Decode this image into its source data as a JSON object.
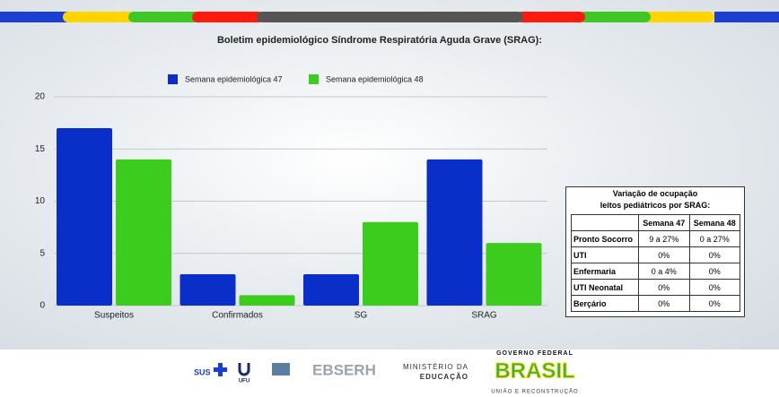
{
  "chart_data": {
    "type": "bar",
    "title": "Boletim epidemiológico Síndrome Respiratória Aguda Grave (SRAG):",
    "categories": [
      "Suspeitos",
      "Confirmados",
      "SG",
      "SRAG"
    ],
    "series": [
      {
        "name": "Semana epidemiológica 47",
        "color": "#0a2ec8",
        "values": [
          17,
          3,
          3,
          14
        ]
      },
      {
        "name": "Semana epidemiológica 48",
        "color": "#3ccc1e",
        "values": [
          14,
          1,
          8,
          6
        ]
      }
    ],
    "ylim": [
      0,
      20
    ],
    "yticks": [
      0,
      5,
      10,
      15,
      20
    ],
    "grid": true,
    "legend": "top"
  },
  "table": {
    "title_lines": [
      "Variação de ocupação",
      "leitos pediátricos por SRAG:"
    ],
    "columns": [
      "Semana 47",
      "Semana 48"
    ],
    "rows": [
      {
        "label": "Pronto Socorro",
        "values": [
          "9 a 27%",
          "0 a 27%"
        ]
      },
      {
        "label": "UTI",
        "values": [
          "0%",
          "0%"
        ]
      },
      {
        "label": "Enfermaria",
        "values": [
          "0 a 4%",
          "0%"
        ]
      },
      {
        "label": "UTI Neonatal",
        "values": [
          "0%",
          "0%"
        ]
      },
      {
        "label": "Berçário",
        "values": [
          "0%",
          "0%"
        ]
      }
    ]
  },
  "footer": {
    "sus": "SUS",
    "ufu": "UFU",
    "ebserh": "EBSERH",
    "ministry": [
      "MINISTÉRIO DA",
      "EDUCAÇÃO"
    ],
    "government": "GOVERNO FEDERAL",
    "brasil": "BRASIL",
    "motto": "UNIÃO E RECONSTRUÇÃO"
  }
}
